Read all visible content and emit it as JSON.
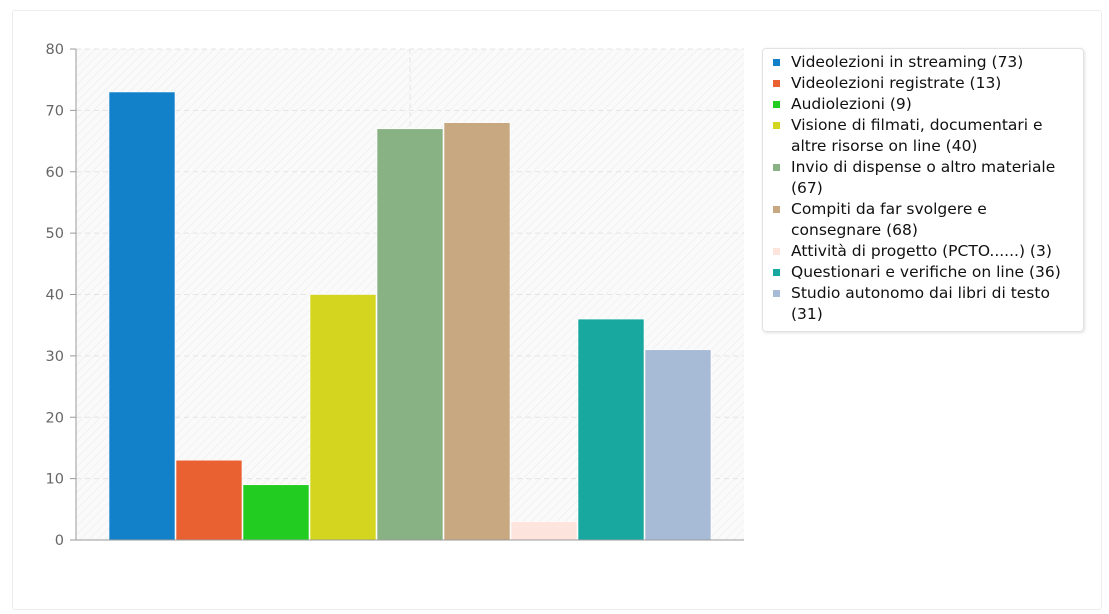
{
  "chart_data": {
    "type": "bar",
    "title": "",
    "xlabel": "",
    "ylabel": "",
    "ylim": [
      0,
      80
    ],
    "yticks": [
      0,
      10,
      20,
      30,
      40,
      50,
      60,
      70,
      80
    ],
    "grid": true,
    "legend_position": "right",
    "series": [
      {
        "name": "Videolezioni in streaming (73)",
        "value": 73,
        "color": "#1380ca"
      },
      {
        "name": "Videolezioni registrate (13)",
        "value": 13,
        "color": "#e96031"
      },
      {
        "name": "Audiolezioni (9)",
        "value": 9,
        "color": "#22cc21"
      },
      {
        "name": "Visione di filmati, documentari e altre risorse on line (40)",
        "value": 40,
        "color": "#d3d51f"
      },
      {
        "name": "Invio di dispense o altro materiale (67)",
        "value": 67,
        "color": "#88b283"
      },
      {
        "name": "Compiti da far svolgere e consegnare (68)",
        "value": 68,
        "color": "#c7a880"
      },
      {
        "name": "Attività di progetto (PCTO......) (3)",
        "value": 3,
        "color": "#fde4dc"
      },
      {
        "name": "Questionari e verifiche on line (36)",
        "value": 36,
        "color": "#18a8a0"
      },
      {
        "name": "Studio autonomo dai libri di testo (31)",
        "value": 31,
        "color": "#a7bbd6"
      }
    ]
  }
}
